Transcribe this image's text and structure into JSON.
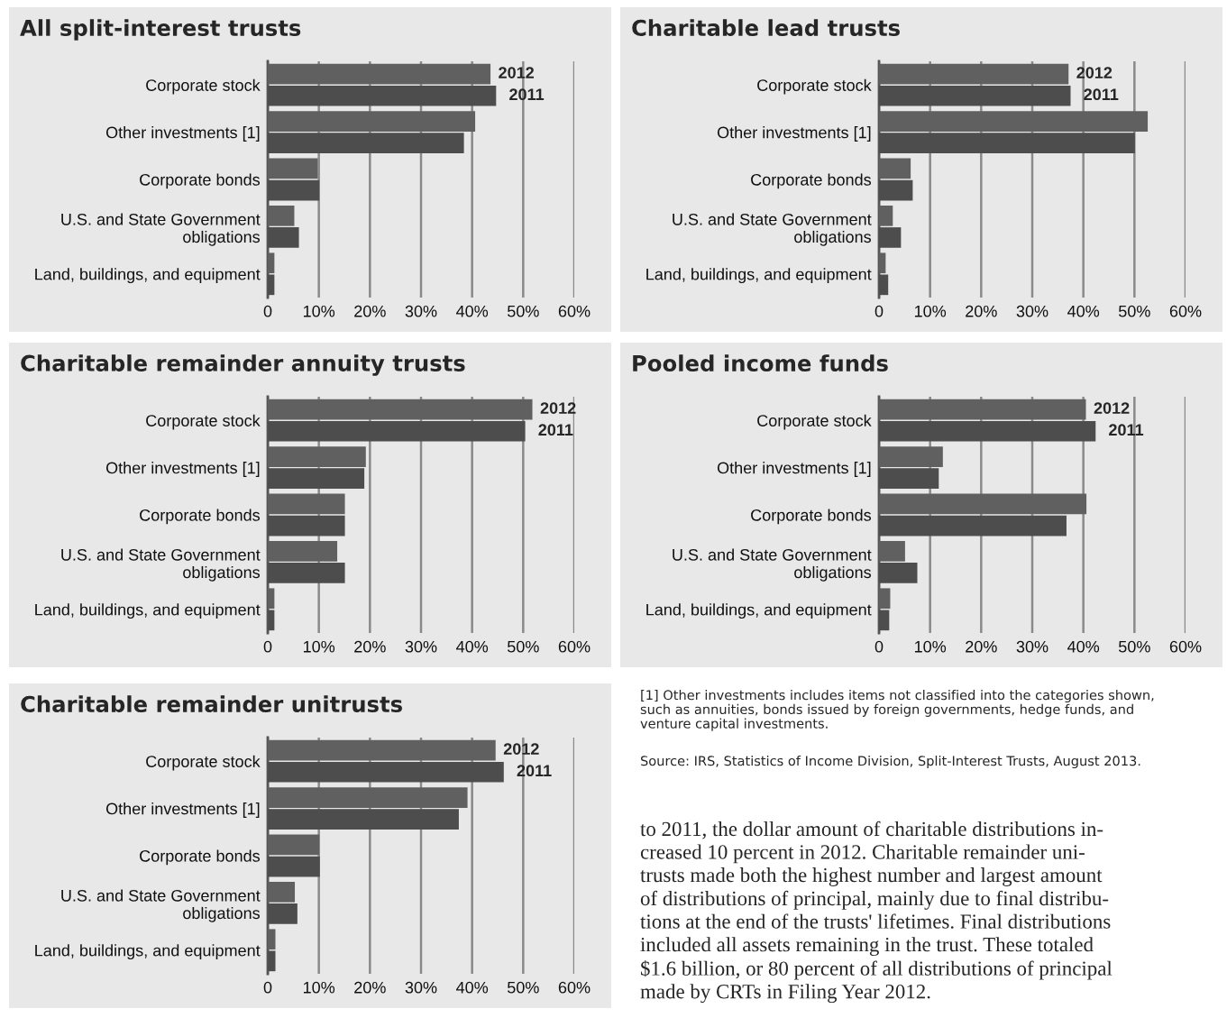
{
  "chart_data": [
    {
      "type": "bar",
      "orientation": "horizontal",
      "title": "All split-interest trusts",
      "categories": [
        "Corporate stock",
        "Other investments [1]",
        "Corporate bonds",
        "U.S. and State Government\nobligations",
        "Land, buildings, and equipment"
      ],
      "xlim": [
        0,
        60
      ],
      "xticks": [
        0,
        {
          "value": 10,
          "label": "10%"
        },
        {
          "value": 20,
          "label": "20%"
        },
        {
          "value": 30,
          "label": "30%"
        },
        {
          "value": 40,
          "label": "40%"
        },
        {
          "value": 50,
          "label": "50%"
        },
        {
          "value": 60,
          "label": "60%"
        }
      ],
      "grid": "x",
      "legend": false,
      "series": [
        {
          "name": "2012",
          "color": "#606060",
          "values": [
            43.6,
            40.6,
            9.8,
            5.2,
            1.3
          ]
        },
        {
          "name": "2011",
          "color": "#4d4d4d",
          "values": [
            44.7,
            38.4,
            10.1,
            6.1,
            1.3
          ]
        }
      ]
    },
    {
      "type": "bar",
      "orientation": "horizontal",
      "title": "Charitable lead trusts",
      "categories": [
        "Corporate stock",
        "Other investments [1]",
        "Corporate bonds",
        "U.S. and State Government\nobligations",
        "Land, buildings, and equipment"
      ],
      "xlim": [
        0,
        60
      ],
      "xticks": [
        0,
        {
          "value": 10,
          "label": "10%"
        },
        {
          "value": 20,
          "label": "20%"
        },
        {
          "value": 30,
          "label": "30%"
        },
        {
          "value": 40,
          "label": "40%"
        },
        {
          "value": 50,
          "label": "50%"
        },
        {
          "value": 60,
          "label": "60%"
        }
      ],
      "grid": "x",
      "legend": false,
      "series": [
        {
          "name": "2012",
          "color": "#606060",
          "values": [
            37.1,
            52.6,
            6.2,
            2.7,
            1.3
          ]
        },
        {
          "name": "2011",
          "color": "#4d4d4d",
          "values": [
            37.5,
            50.1,
            6.6,
            4.3,
            1.8
          ]
        }
      ]
    },
    {
      "type": "bar",
      "orientation": "horizontal",
      "title": "Charitable remainder annuity trusts",
      "categories": [
        "Corporate stock",
        "Other investments [1]",
        "Corporate bonds",
        "U.S. and State Government\nobligations",
        "Land, buildings, and equipment"
      ],
      "xlim": [
        0,
        60
      ],
      "xticks": [
        0,
        {
          "value": 10,
          "label": "10%"
        },
        {
          "value": 20,
          "label": "20%"
        },
        {
          "value": 30,
          "label": "30%"
        },
        {
          "value": 40,
          "label": "40%"
        },
        {
          "value": 50,
          "label": "50%"
        },
        {
          "value": 60,
          "label": "60%"
        }
      ],
      "grid": "x",
      "legend": false,
      "series": [
        {
          "name": "2012",
          "color": "#606060",
          "values": [
            51.8,
            19.2,
            15.1,
            13.6,
            1.3
          ]
        },
        {
          "name": "2011",
          "color": "#4d4d4d",
          "values": [
            50.4,
            18.9,
            15.1,
            15.1,
            1.3
          ]
        }
      ]
    },
    {
      "type": "bar",
      "orientation": "horizontal",
      "title": "Pooled income funds",
      "categories": [
        "Corporate stock",
        "Other investments [1]",
        "Corporate bonds",
        "U.S. and State Government\nobligations",
        "Land, buildings, and equipment"
      ],
      "xlim": [
        0,
        60
      ],
      "xticks": [
        0,
        {
          "value": 10,
          "label": "10%"
        },
        {
          "value": 20,
          "label": "20%"
        },
        {
          "value": 30,
          "label": "30%"
        },
        {
          "value": 40,
          "label": "40%"
        },
        {
          "value": 50,
          "label": "50%"
        },
        {
          "value": 60,
          "label": "60%"
        }
      ],
      "grid": "x",
      "legend": false,
      "series": [
        {
          "name": "2012",
          "color": "#606060",
          "values": [
            40.5,
            12.5,
            40.6,
            5.1,
            2.2
          ]
        },
        {
          "name": "2011",
          "color": "#4d4d4d",
          "values": [
            42.4,
            11.7,
            36.7,
            7.5,
            2.0
          ]
        }
      ]
    },
    {
      "type": "bar",
      "orientation": "horizontal",
      "title": "Charitable remainder unitrusts",
      "categories": [
        "Corporate stock",
        "Other investments [1]",
        "Corporate bonds",
        "U.S. and State Government\nobligations",
        "Land, buildings, and equipment"
      ],
      "xlim": [
        0,
        60
      ],
      "xticks": [
        0,
        {
          "value": 10,
          "label": "10%"
        },
        {
          "value": 20,
          "label": "20%"
        },
        {
          "value": 30,
          "label": "30%"
        },
        {
          "value": 40,
          "label": "40%"
        },
        {
          "value": 50,
          "label": "50%"
        },
        {
          "value": 60,
          "label": "60%"
        }
      ],
      "grid": "x",
      "legend": false,
      "series": [
        {
          "name": "2012",
          "color": "#606060",
          "values": [
            44.6,
            39.1,
            10.1,
            5.3,
            1.5
          ]
        },
        {
          "name": "2011",
          "color": "#4d4d4d",
          "values": [
            46.2,
            37.4,
            10.2,
            5.8,
            1.5
          ]
        }
      ]
    },
    {
      "type": "other",
      "annotations": [
        "[1] Other investments includes items not classified into the categories shown,\nsuch as annuities, bonds issued by foreign governments, hedge funds, and\nventure capital investments.",
        "Source: IRS, Statistics of Income Division, Split-Interest Trusts, August 2013.",
        "to 2011, the dollar amount of charitable distributions in-\ncreased 10 percent in 2012. Charitable remainder uni-\ntrusts made both the highest number and largest amount\nof distributions of principal, mainly due to final distribu-\ntions at the end of the trusts' lifetimes. Final distributions\nincluded all assets remaining in the trust. These totaled\n$1.6 billion, or 80 percent of all distributions of principal\nmade by CRTs in Filing Year 2012."
      ]
    }
  ]
}
